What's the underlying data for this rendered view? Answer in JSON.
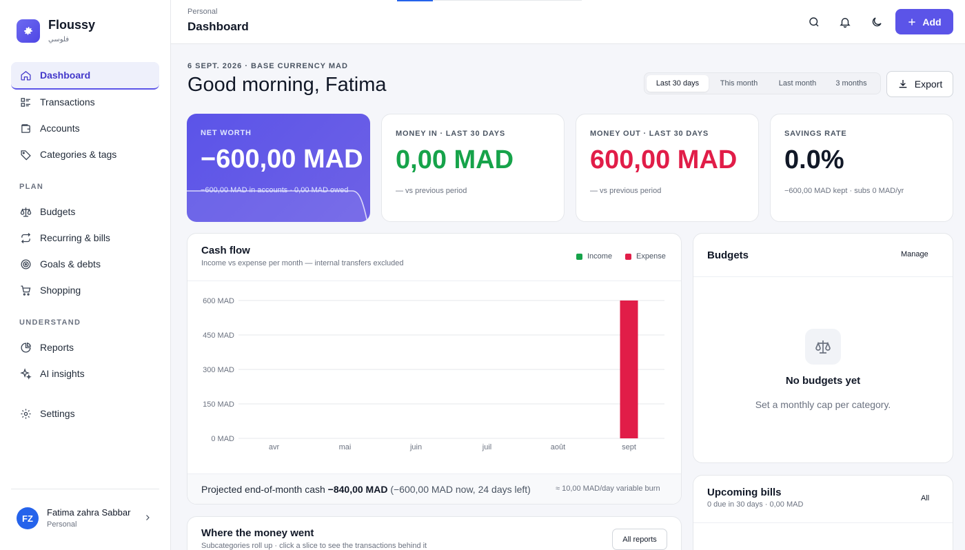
{
  "app": {
    "name": "Floussy",
    "subtitle": "فلوسي"
  },
  "sidebar": {
    "main": [
      {
        "label": "Dashboard",
        "icon": "home-icon",
        "active": true
      },
      {
        "label": "Transactions",
        "icon": "list-icon"
      },
      {
        "label": "Accounts",
        "icon": "wallet-icon"
      },
      {
        "label": "Categories & tags",
        "icon": "tag-icon"
      }
    ],
    "plan_heading": "PLAN",
    "plan": [
      {
        "label": "Budgets",
        "icon": "scale-icon"
      },
      {
        "label": "Recurring & bills",
        "icon": "repeat-icon"
      },
      {
        "label": "Goals & debts",
        "icon": "target-icon"
      },
      {
        "label": "Shopping",
        "icon": "cart-icon"
      }
    ],
    "understand_heading": "UNDERSTAND",
    "understand": [
      {
        "label": "Reports",
        "icon": "pie-chart-icon"
      },
      {
        "label": "AI insights",
        "icon": "sparkle-icon"
      }
    ],
    "settings": {
      "label": "Settings",
      "icon": "gear-icon"
    }
  },
  "user": {
    "initials": "FZ",
    "name": "Fatima zahra Sabbar",
    "workspace": "Personal"
  },
  "topbar": {
    "breadcrumb": "Personal",
    "title": "Dashboard",
    "add_label": "Add"
  },
  "header": {
    "date_line": "6 SEPT. 2026 · BASE CURRENCY MAD",
    "greeting": "Good morning, Fatima",
    "ranges": [
      "Last 30 days",
      "This month",
      "Last month",
      "3 months"
    ],
    "active_range": "Last 30 days",
    "export_label": "Export"
  },
  "kpis": {
    "net_worth": {
      "label": "NET WORTH",
      "value": "−600,00 MAD",
      "sub": "−600,00 MAD in accounts · 0,00 MAD owed"
    },
    "money_in": {
      "label": "MONEY IN · LAST 30 DAYS",
      "value": "0,00 MAD",
      "sub": "—  vs previous period",
      "color": "#16a34a"
    },
    "money_out": {
      "label": "MONEY OUT · LAST 30 DAYS",
      "value": "600,00 MAD",
      "sub": "—  vs previous period",
      "color": "#e11d48"
    },
    "savings": {
      "label": "SAVINGS RATE",
      "value": "0.0%",
      "sub": "−600,00 MAD kept · subs 0 MAD/yr"
    }
  },
  "cashflow": {
    "title": "Cash flow",
    "subtitle": "Income vs expense per month — internal transfers excluded",
    "legend_income": "Income",
    "legend_expense": "Expense",
    "projection_label": "Projected end-of-month cash",
    "projection_value": "−840,00 MAD",
    "projection_detail": "(−600,00 MAD now, 24 days left)",
    "burn": "≈ 10,00 MAD/day variable burn"
  },
  "chart_data": {
    "type": "bar",
    "categories": [
      "avr",
      "mai",
      "juin",
      "juil",
      "août",
      "sept"
    ],
    "series": [
      {
        "name": "Income",
        "color": "#16a34a",
        "values": [
          0,
          0,
          0,
          0,
          0,
          0
        ]
      },
      {
        "name": "Expense",
        "color": "#e11d48",
        "values": [
          0,
          0,
          0,
          0,
          0,
          600
        ]
      }
    ],
    "yticks": [
      "0 MAD",
      "150 MAD",
      "300 MAD",
      "450 MAD",
      "600 MAD"
    ],
    "ylim": [
      0,
      600
    ],
    "grid": true,
    "legend": "top-right"
  },
  "budgets": {
    "title": "Budgets",
    "manage": "Manage",
    "empty_title": "No budgets yet",
    "empty_sub": "Set a monthly cap per category."
  },
  "bills": {
    "title": "Upcoming bills",
    "sub": "0 due in 30 days · 0,00 MAD",
    "all": "All"
  },
  "where": {
    "title": "Where the money went",
    "sub": "Subcategories roll up · click a slice to see the transactions behind it",
    "all_reports": "All reports"
  }
}
